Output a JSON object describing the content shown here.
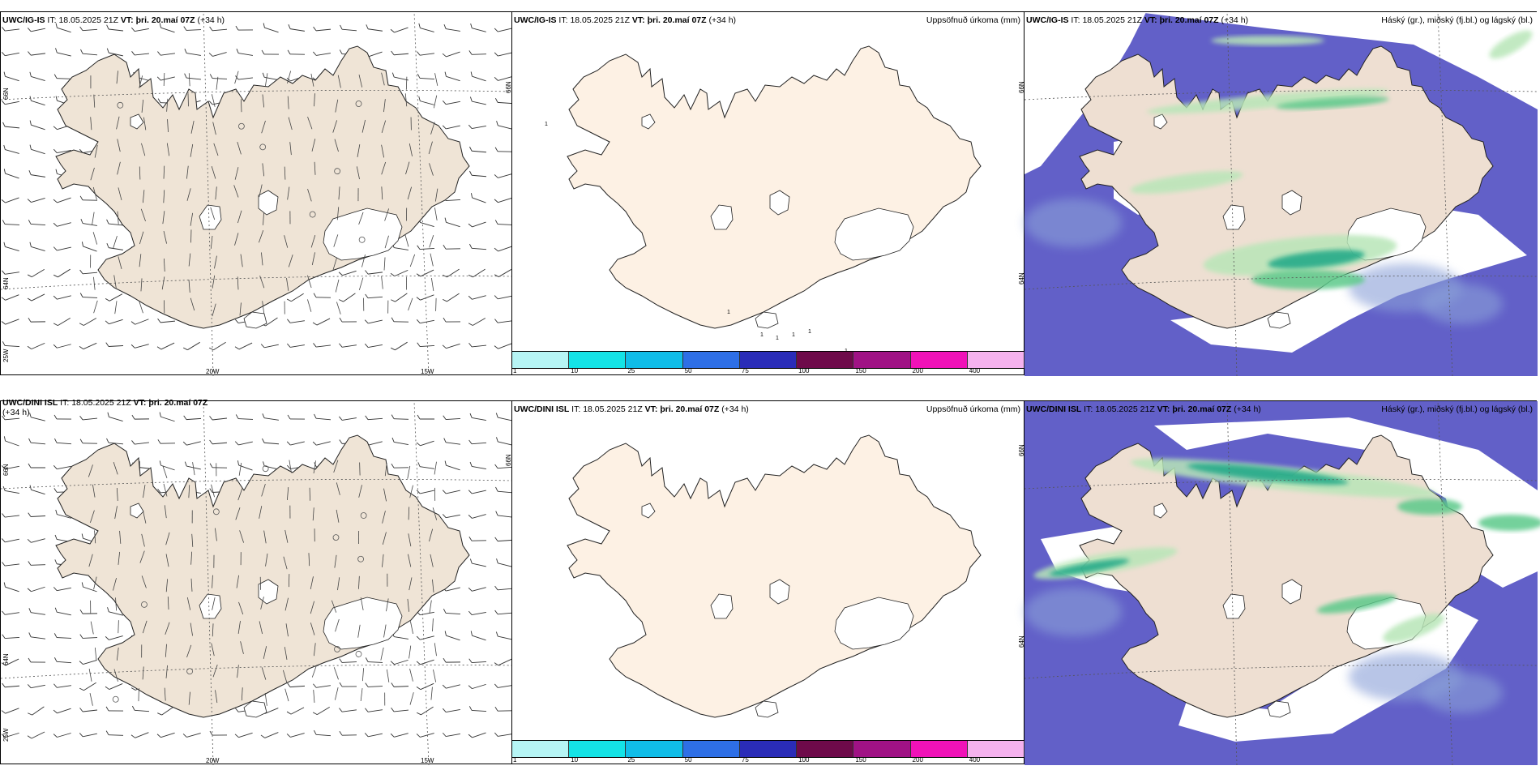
{
  "colors": {
    "land_wind": "#efe4d6",
    "land_precip": "#fdf1e4",
    "land_cloud": "#eedfd2",
    "ocean_low_cloud": "#6260c8",
    "mid_cloud": "#8aa0d8",
    "high_cloud_light": "#b8e6b8",
    "high_cloud_mid": "#5cc98a",
    "high_cloud_dark": "#1fa886",
    "coast": "#222222"
  },
  "rows": [
    {
      "model": "UWC/IG-IS",
      "panels": [
        {
          "model": "UWC/IG-IS",
          "it_label": "IT:",
          "it_value": "18.05.2025 21Z",
          "vt_label": "VT:",
          "vt_value": "þri. 20.maí 07Z",
          "lead": "(+34 h)",
          "right_title": ""
        },
        {
          "model": "UWC/IG-IS",
          "it_label": "IT:",
          "it_value": "18.05.2025 21Z",
          "vt_label": "VT:",
          "vt_value": "þri. 20.maí 07Z",
          "lead": "(+34 h)",
          "right_title": "Uppsöfnuð úrkoma (mm)"
        },
        {
          "model": "UWC/IG-IS",
          "it_label": "IT:",
          "it_value": "18.05.2025 21Z",
          "vt_label": "VT:",
          "vt_value": "þri. 20.maí 07Z",
          "lead": "(+34 h)",
          "right_title": "Háský (gr.), miðský (fj.bl.) og lágský (bl.)"
        }
      ]
    },
    {
      "model": "UWC/DINI ISL",
      "panels": [
        {
          "model": "UWC/DINI ISL",
          "it_label": "IT:",
          "it_value": "18.05.2025 21Z",
          "vt_label": "VT:",
          "vt_value": "þri. 20.maí 07Z",
          "lead": "(+34 h)",
          "right_title": ""
        },
        {
          "model": "UWC/DINI ISL",
          "it_label": "IT:",
          "it_value": "18.05.2025 21Z",
          "vt_label": "VT:",
          "vt_value": "þri. 20.maí 07Z",
          "lead": "(+34 h)",
          "right_title": "Uppsöfnuð úrkoma (mm)"
        },
        {
          "model": "UWC/DINI ISL",
          "it_label": "IT:",
          "it_value": "18.05.2025 21Z",
          "vt_label": "VT:",
          "vt_value": "þri. 20.maí 07Z",
          "lead": "(+34 h)",
          "right_title": "Háský (gr.), miðský (fj.bl.) og lágský (bl.)"
        }
      ]
    }
  ],
  "grid_labels": {
    "lat_66": "66N",
    "lat_64": "64N",
    "lon_25": "25W",
    "lon_20": "20W",
    "lon_15": "15W"
  },
  "colorbar": {
    "ticks": [
      "1",
      "10",
      "25",
      "50",
      "75",
      "100",
      "150",
      "200",
      "400"
    ],
    "colors": [
      "#b6f5f5",
      "#14e3e6",
      "#10bde8",
      "#2e6fe6",
      "#2a2cb8",
      "#6e0a4a",
      "#a01285",
      "#f012b8",
      "#f5b2ee"
    ]
  },
  "precip_spot_values": [
    "1",
    "1",
    "1",
    "1",
    "1",
    "1",
    "1"
  ]
}
